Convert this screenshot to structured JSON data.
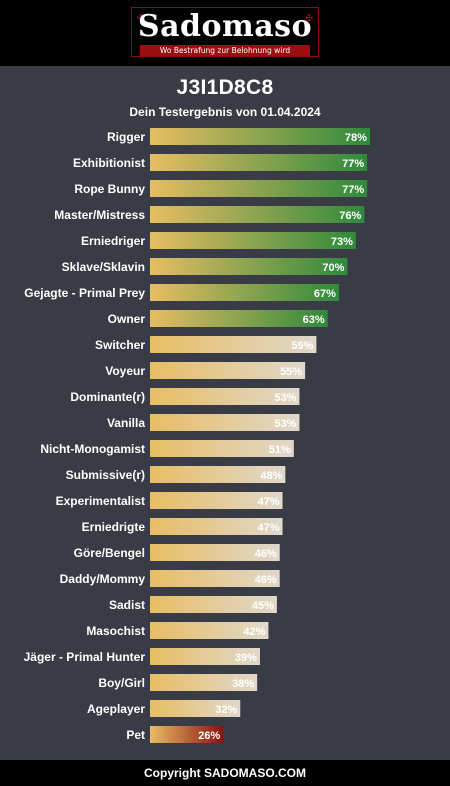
{
  "logo": {
    "text": "Sadomaso",
    "tagline": "Wo Bestrafung zur Belohnung wird"
  },
  "result": {
    "title": "J3I1D8C8",
    "subtitle": "Dein Testergebnis von 01.04.2024"
  },
  "footer": {
    "text": "Copyright SADOMASO.COM"
  },
  "colors": {
    "bar_start": "#e8bd62",
    "high": "#2f8a3c",
    "mid": "#e0d8cc",
    "low": "#8c1010"
  },
  "chart_data": {
    "type": "bar",
    "orientation": "horizontal",
    "categories": [
      "Rigger",
      "Exhibitionist",
      "Rope Bunny",
      "Master/Mistress",
      "Erniedriger",
      "Sklave/Sklavin",
      "Gejagte - Primal Prey",
      "Owner",
      "Switcher",
      "Voyeur",
      "Dominante(r)",
      "Vanilla",
      "Nicht-Monogamist",
      "Submissive(r)",
      "Experimentalist",
      "Erniedrigte",
      "Göre/Bengel",
      "Daddy/Mommy",
      "Sadist",
      "Masochist",
      "Jäger - Primal Hunter",
      "Boy/Girl",
      "Ageplayer",
      "Pet"
    ],
    "values": [
      78,
      77,
      77,
      76,
      73,
      70,
      67,
      63,
      59,
      55,
      53,
      53,
      51,
      48,
      47,
      47,
      46,
      46,
      45,
      42,
      39,
      38,
      32,
      26
    ],
    "labels": [
      "78%",
      "77%",
      "77%",
      "76%",
      "73%",
      "70%",
      "67%",
      "63%",
      "59%",
      "55%",
      "53%",
      "53%",
      "51%",
      "48%",
      "47%",
      "47%",
      "46%",
      "46%",
      "45%",
      "42%",
      "39%",
      "38%",
      "32%",
      "26%"
    ],
    "xlim": [
      0,
      100
    ]
  }
}
